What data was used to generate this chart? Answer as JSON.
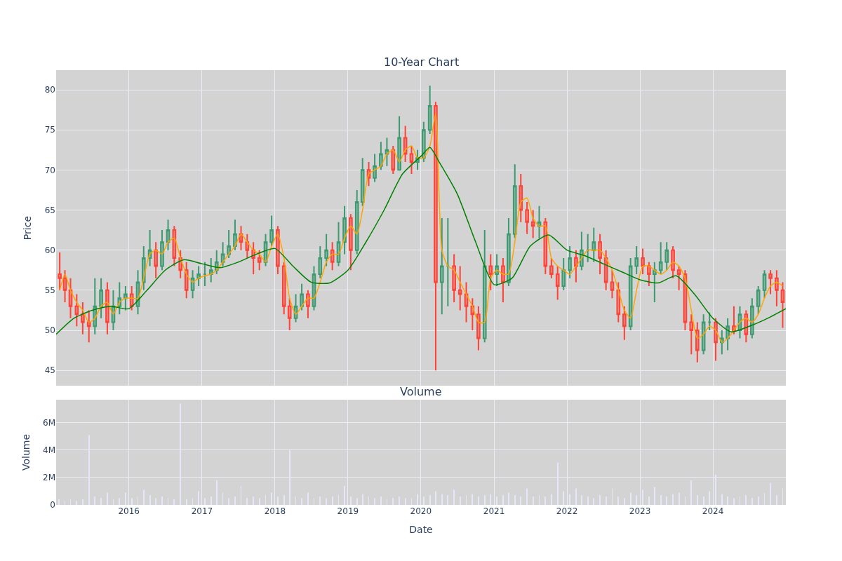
{
  "chart_data": [
    {
      "type": "candlestick",
      "title": "10-Year Chart",
      "ylabel": "Price",
      "grid": true,
      "tick_labels": "y",
      "xlim": [
        "2015-01-02",
        "2024-12-31"
      ],
      "xticks": [
        "2016",
        "2017",
        "2018",
        "2019",
        "2020",
        "2021",
        "2022",
        "2023",
        "2024"
      ],
      "ylim": [
        43.08,
        82.45
      ],
      "yticks": [
        45,
        50,
        55,
        60,
        65,
        70,
        75,
        80
      ],
      "x": [
        "2015-01-20",
        "2015-02-15",
        "2015-03-15",
        "2015-04-15",
        "2015-05-15",
        "2015-06-15",
        "2015-07-15",
        "2015-08-15",
        "2015-09-15",
        "2015-10-15",
        "2015-11-15",
        "2015-12-15",
        "2016-01-15",
        "2016-02-15",
        "2016-03-15",
        "2016-04-15",
        "2016-05-15",
        "2016-06-15",
        "2016-07-15",
        "2016-08-15",
        "2016-09-15",
        "2016-10-15",
        "2016-11-15",
        "2016-12-15",
        "2017-01-15",
        "2017-02-15",
        "2017-03-15",
        "2017-04-15",
        "2017-05-15",
        "2017-06-15",
        "2017-07-15",
        "2017-08-15",
        "2017-09-15",
        "2017-10-15",
        "2017-11-15",
        "2017-12-15",
        "2018-01-15",
        "2018-02-15",
        "2018-03-15",
        "2018-04-15",
        "2018-05-15",
        "2018-06-15",
        "2018-07-15",
        "2018-08-15",
        "2018-09-15",
        "2018-10-15",
        "2018-11-15",
        "2018-12-15",
        "2019-01-15",
        "2019-02-15",
        "2019-03-15",
        "2019-04-15",
        "2019-05-15",
        "2019-06-15",
        "2019-07-15",
        "2019-08-15",
        "2019-09-15",
        "2019-10-15",
        "2019-11-15",
        "2019-12-15",
        "2020-01-15",
        "2020-02-15",
        "2020-03-15",
        "2020-04-15",
        "2020-05-15",
        "2020-06-15",
        "2020-07-15",
        "2020-08-15",
        "2020-09-15",
        "2020-10-15",
        "2020-11-15",
        "2020-12-15",
        "2021-01-15",
        "2021-02-15",
        "2021-03-15",
        "2021-04-15",
        "2021-05-15",
        "2021-06-15",
        "2021-07-15",
        "2021-08-15",
        "2021-09-15",
        "2021-10-15",
        "2021-11-15",
        "2021-12-15",
        "2022-01-15",
        "2022-02-15",
        "2022-03-15",
        "2022-04-15",
        "2022-05-15",
        "2022-06-15",
        "2022-07-15",
        "2022-08-15",
        "2022-09-15",
        "2022-10-15",
        "2022-11-15",
        "2022-12-15",
        "2023-01-15",
        "2023-02-15",
        "2023-03-15",
        "2023-04-15",
        "2023-05-15",
        "2023-06-15",
        "2023-07-15",
        "2023-08-15",
        "2023-09-15",
        "2023-10-15",
        "2023-11-15",
        "2023-12-15",
        "2024-01-15",
        "2024-02-15",
        "2024-03-15",
        "2024-04-15",
        "2024-05-15",
        "2024-06-15",
        "2024-07-15",
        "2024-08-15",
        "2024-09-15",
        "2024-10-15",
        "2024-11-15",
        "2024-12-15"
      ],
      "ohlc": [
        [
          57,
          59.7,
          55,
          56.5
        ],
        [
          56.5,
          57.5,
          53.5,
          55
        ],
        [
          55,
          56.5,
          51.5,
          53
        ],
        [
          53,
          54.5,
          50.5,
          52
        ],
        [
          52,
          53.5,
          49.5,
          51
        ],
        [
          51,
          52.5,
          48.5,
          50.5
        ],
        [
          50.5,
          56.5,
          49.5,
          53
        ],
        [
          53,
          56.5,
          51.5,
          55
        ],
        [
          55,
          56,
          49.5,
          51
        ],
        [
          51,
          55,
          50,
          53
        ],
        [
          53,
          56,
          52,
          54
        ],
        [
          54,
          55.5,
          52.5,
          54.5
        ],
        [
          54.5,
          55.5,
          52.5,
          53
        ],
        [
          53,
          57.5,
          52,
          56
        ],
        [
          56,
          60.5,
          55,
          59
        ],
        [
          59,
          62.5,
          58,
          60
        ],
        [
          60,
          61,
          56.5,
          58
        ],
        [
          58,
          62.5,
          57.5,
          61
        ],
        [
          61,
          63.8,
          60,
          62.5
        ],
        [
          62.5,
          63,
          58,
          59
        ],
        [
          59,
          60,
          56.5,
          57.5
        ],
        [
          57.5,
          58.5,
          54,
          55
        ],
        [
          55,
          57.5,
          54,
          56.5
        ],
        [
          56.5,
          58,
          55.5,
          57
        ],
        [
          57,
          58.5,
          55.5,
          57
        ],
        [
          57,
          59,
          56,
          57.5
        ],
        [
          57.5,
          60,
          57,
          58.5
        ],
        [
          58.5,
          61,
          58,
          59.5
        ],
        [
          59.5,
          62.5,
          59,
          60.5
        ],
        [
          60.5,
          63.8,
          60,
          62
        ],
        [
          62,
          63,
          60,
          61
        ],
        [
          61,
          62,
          59,
          60
        ],
        [
          60,
          61,
          57,
          59
        ],
        [
          59,
          60,
          57.5,
          58.5
        ],
        [
          58.5,
          62,
          58,
          61
        ],
        [
          61,
          64.3,
          60.5,
          62.5
        ],
        [
          62.5,
          63,
          57,
          58
        ],
        [
          58,
          58.5,
          52,
          53
        ],
        [
          53,
          54,
          50,
          51.5
        ],
        [
          51.5,
          54.5,
          51,
          53
        ],
        [
          53,
          55.8,
          52.5,
          54.5
        ],
        [
          54.5,
          55,
          51.5,
          53
        ],
        [
          53,
          58,
          52.5,
          57
        ],
        [
          57,
          60.5,
          56.5,
          59
        ],
        [
          59,
          62,
          58,
          60
        ],
        [
          60,
          61,
          57.5,
          58.5
        ],
        [
          58.5,
          63.5,
          58,
          61
        ],
        [
          61,
          65.5,
          59.5,
          64
        ],
        [
          64,
          64.5,
          57.5,
          60
        ],
        [
          60,
          67.5,
          59.5,
          66
        ],
        [
          66,
          71.5,
          65.5,
          70
        ],
        [
          70,
          71,
          68,
          69
        ],
        [
          69,
          72,
          68.5,
          70.5
        ],
        [
          70.5,
          73.5,
          70,
          72
        ],
        [
          72,
          74,
          70.5,
          72.5
        ],
        [
          72.5,
          73,
          69.5,
          70
        ],
        [
          70,
          76.7,
          70,
          74
        ],
        [
          74,
          75.5,
          71,
          72
        ],
        [
          72,
          73,
          69.5,
          71
        ],
        [
          71,
          72.5,
          70,
          71.5
        ],
        [
          71.5,
          76,
          71,
          75
        ],
        [
          75,
          80.5,
          74.5,
          78
        ],
        [
          78,
          78.5,
          45,
          56
        ],
        [
          56,
          64,
          52,
          58
        ],
        [
          58,
          64,
          53,
          58
        ],
        [
          58,
          59.5,
          53.5,
          55
        ],
        [
          55,
          58,
          52.5,
          54.5
        ],
        [
          54.5,
          56,
          51,
          53
        ],
        [
          53,
          54,
          50,
          52
        ],
        [
          52,
          53,
          47.5,
          49
        ],
        [
          49,
          62.5,
          48.5,
          58
        ],
        [
          58,
          59.5,
          55,
          57
        ],
        [
          57,
          59.5,
          55.5,
          58
        ],
        [
          58,
          59,
          53.5,
          56
        ],
        [
          56,
          64,
          55.5,
          62
        ],
        [
          62,
          70.7,
          61.5,
          68
        ],
        [
          68,
          69.5,
          63.5,
          65
        ],
        [
          65,
          66,
          62,
          63.5
        ],
        [
          63.5,
          65,
          61.5,
          63
        ],
        [
          63,
          65.5,
          61.5,
          63.5
        ],
        [
          63.5,
          64,
          57,
          58
        ],
        [
          58,
          59,
          56.5,
          57
        ],
        [
          57,
          58,
          53.8,
          55.5
        ],
        [
          55.5,
          59,
          55,
          57.5
        ],
        [
          57.5,
          60.5,
          56.5,
          59
        ],
        [
          59,
          60,
          56,
          58
        ],
        [
          58,
          62.3,
          57.5,
          60
        ],
        [
          60,
          62,
          58.5,
          60
        ],
        [
          60,
          62.8,
          58.5,
          61
        ],
        [
          61,
          62,
          57,
          59
        ],
        [
          59,
          60,
          55,
          56
        ],
        [
          56,
          57.5,
          54,
          55
        ],
        [
          55,
          56,
          51,
          52
        ],
        [
          52,
          53,
          48.8,
          50.5
        ],
        [
          50.5,
          59,
          50,
          58
        ],
        [
          58,
          60.5,
          57,
          59
        ],
        [
          59,
          60.2,
          57,
          58
        ],
        [
          58,
          58.5,
          55.5,
          57
        ],
        [
          57,
          58.5,
          53.5,
          57.5
        ],
        [
          57.5,
          61,
          57,
          58.5
        ],
        [
          58.5,
          61,
          57.5,
          60
        ],
        [
          60,
          60.5,
          56.5,
          57.5
        ],
        [
          57.5,
          58,
          55,
          57
        ],
        [
          57,
          57.5,
          50,
          51
        ],
        [
          51,
          52,
          47,
          50
        ],
        [
          50,
          51,
          46,
          47.5
        ],
        [
          47.5,
          52,
          47,
          51
        ],
        [
          51,
          52.2,
          50,
          51
        ],
        [
          51,
          51.5,
          46.2,
          48.5
        ],
        [
          48.5,
          50,
          47,
          49
        ],
        [
          49,
          51.5,
          47.5,
          50.5
        ],
        [
          50.5,
          53,
          49.5,
          50
        ],
        [
          50,
          53,
          49,
          52
        ],
        [
          52,
          52.5,
          48.5,
          49.5
        ],
        [
          49.5,
          54,
          49,
          53
        ],
        [
          53,
          55.5,
          52,
          55
        ],
        [
          55,
          57.5,
          54,
          57
        ],
        [
          57,
          57.5,
          54.5,
          56.5
        ],
        [
          56.5,
          57.5,
          53,
          55
        ],
        [
          55,
          56,
          50.3,
          53.5
        ]
      ],
      "series": [
        {
          "type": "line",
          "color": "#ffa500",
          "values": [
            55,
            57,
            55,
            53.5,
            52.5,
            51,
            51.5,
            53,
            53.5,
            52,
            53.5,
            54,
            54,
            54,
            56.5,
            59.5,
            60,
            59.5,
            61,
            61.5,
            59,
            57,
            56,
            56.5,
            56.8,
            57,
            57.5,
            58.5,
            59.5,
            60.5,
            62,
            61,
            60,
            59.5,
            58.5,
            60.5,
            62,
            59,
            54,
            52,
            53,
            54,
            54,
            56,
            58.5,
            59.5,
            59.5,
            61.5,
            63,
            62,
            65,
            69.5,
            70,
            70.5,
            72,
            72.5,
            71,
            72.5,
            73,
            71.5,
            71.5,
            73,
            77,
            60,
            58,
            57.5,
            56,
            54.5,
            53,
            51,
            51,
            56.5,
            57.5,
            57,
            57,
            61,
            66,
            66.5,
            64,
            63,
            63,
            59,
            58,
            57.5,
            57,
            58,
            59,
            60,
            60,
            60,
            59,
            57.5,
            55,
            52.5,
            51.5,
            55,
            58,
            58,
            57.5,
            57,
            57.5,
            58.5,
            58,
            56.5,
            52.5,
            49,
            49.5,
            50.5,
            50,
            48.5,
            49,
            50,
            51,
            51.5,
            51,
            52,
            54,
            55.5,
            56,
            55.5
          ]
        },
        {
          "type": "line",
          "color": "#008000",
          "x": [
            "2015-01-02",
            "2015-04-01",
            "2015-07-01",
            "2015-10-01",
            "2016-01-01",
            "2016-04-01",
            "2016-07-01",
            "2016-10-01",
            "2017-01-01",
            "2017-04-01",
            "2017-07-01",
            "2017-10-01",
            "2018-01-01",
            "2018-04-01",
            "2018-07-01",
            "2018-10-01",
            "2019-01-01",
            "2019-04-01",
            "2019-07-01",
            "2019-10-01",
            "2020-01-01",
            "2020-02-15",
            "2020-04-01",
            "2020-07-01",
            "2020-10-01",
            "2021-01-01",
            "2021-04-01",
            "2021-07-01",
            "2021-10-01",
            "2022-01-01",
            "2022-04-01",
            "2022-07-01",
            "2022-10-01",
            "2023-01-01",
            "2023-04-01",
            "2023-07-01",
            "2023-10-01",
            "2024-01-01",
            "2024-04-01",
            "2024-07-01",
            "2024-10-01",
            "2024-12-31"
          ],
          "values": [
            49.5,
            51.5,
            52.5,
            53,
            52.7,
            55,
            57.5,
            58.8,
            58.3,
            57.8,
            58.5,
            59.5,
            60.2,
            58,
            56,
            55.9,
            57.5,
            61,
            65,
            69.5,
            71.7,
            72.8,
            71,
            67,
            61,
            55.7,
            56.5,
            60.5,
            61.9,
            60,
            59.3,
            58.3,
            57.3,
            56.3,
            55.9,
            56.8,
            54.5,
            51.5,
            49.8,
            50.5,
            51.5,
            52.7
          ]
        }
      ]
    },
    {
      "type": "bar",
      "title": "Volume",
      "ylabel": "Volume",
      "xlabel": "Date",
      "grid": true,
      "color": "#e6e6fa",
      "xlim": [
        "2015-01-02",
        "2024-12-31"
      ],
      "xticks": [
        "2016",
        "2017",
        "2018",
        "2019",
        "2020",
        "2021",
        "2022",
        "2023",
        "2024"
      ],
      "ylim": [
        0,
        7690000
      ],
      "yticks": [
        0,
        {
          "value": 2000000,
          "label": "2M"
        },
        {
          "value": 4000000,
          "label": "4M"
        },
        {
          "value": 6000000,
          "label": "6M"
        }
      ],
      "x": [
        "2015-01-15",
        "2015-02-15",
        "2015-03-15",
        "2015-04-15",
        "2015-05-15",
        "2015-06-15",
        "2015-07-15",
        "2015-08-15",
        "2015-09-15",
        "2015-10-15",
        "2015-11-15",
        "2015-12-15",
        "2016-01-15",
        "2016-02-15",
        "2016-03-15",
        "2016-04-15",
        "2016-05-15",
        "2016-06-15",
        "2016-07-15",
        "2016-08-15",
        "2016-09-15",
        "2016-10-15",
        "2016-11-15",
        "2016-12-15",
        "2017-01-15",
        "2017-02-15",
        "2017-03-15",
        "2017-04-15",
        "2017-05-15",
        "2017-06-15",
        "2017-07-15",
        "2017-08-15",
        "2017-09-15",
        "2017-10-15",
        "2017-11-15",
        "2017-12-15",
        "2018-01-15",
        "2018-02-15",
        "2018-03-15",
        "2018-04-15",
        "2018-05-15",
        "2018-06-15",
        "2018-07-15",
        "2018-08-15",
        "2018-09-15",
        "2018-10-15",
        "2018-11-15",
        "2018-12-15",
        "2019-01-15",
        "2019-02-15",
        "2019-03-15",
        "2019-04-15",
        "2019-05-15",
        "2019-06-15",
        "2019-07-15",
        "2019-08-15",
        "2019-09-15",
        "2019-10-15",
        "2019-11-15",
        "2019-12-15",
        "2020-01-15",
        "2020-02-15",
        "2020-03-15",
        "2020-04-15",
        "2020-05-15",
        "2020-06-15",
        "2020-07-15",
        "2020-08-15",
        "2020-09-15",
        "2020-10-15",
        "2020-11-15",
        "2020-12-15",
        "2021-01-15",
        "2021-02-15",
        "2021-03-15",
        "2021-04-15",
        "2021-05-15",
        "2021-06-15",
        "2021-07-15",
        "2021-08-15",
        "2021-09-15",
        "2021-10-15",
        "2021-11-15",
        "2021-12-15",
        "2022-01-15",
        "2022-02-15",
        "2022-03-15",
        "2022-04-15",
        "2022-05-15",
        "2022-06-15",
        "2022-07-15",
        "2022-08-15",
        "2022-09-15",
        "2022-10-15",
        "2022-11-15",
        "2022-12-15",
        "2023-01-15",
        "2023-02-15",
        "2023-03-15",
        "2023-04-15",
        "2023-05-15",
        "2023-06-15",
        "2023-07-15",
        "2023-08-15",
        "2023-09-15",
        "2023-10-15",
        "2023-11-15",
        "2023-12-15",
        "2024-01-15",
        "2024-02-15",
        "2024-03-15",
        "2024-04-15",
        "2024-05-15",
        "2024-06-15",
        "2024-07-15",
        "2024-08-15",
        "2024-09-15",
        "2024-10-15",
        "2024-11-15",
        "2024-12-15"
      ],
      "values": [
        400000,
        300000,
        400000,
        300000,
        400000,
        5100000,
        600000,
        500000,
        900000,
        400000,
        500000,
        900000,
        500000,
        600000,
        1100000,
        700000,
        500000,
        600000,
        500000,
        400000,
        7400000,
        400000,
        500000,
        1000000,
        500000,
        600000,
        1800000,
        900000,
        500000,
        600000,
        1400000,
        500000,
        600000,
        500000,
        700000,
        900000,
        600000,
        700000,
        4000000,
        600000,
        500000,
        900000,
        500000,
        600000,
        500000,
        600000,
        700000,
        1400000,
        600000,
        500000,
        800000,
        600000,
        500000,
        600000,
        400000,
        500000,
        600000,
        500000,
        500000,
        800000,
        600000,
        700000,
        1000000,
        800000,
        700000,
        1100000,
        600000,
        700000,
        800000,
        600000,
        700000,
        800000,
        600000,
        700000,
        900000,
        700000,
        600000,
        1200000,
        600000,
        700000,
        600000,
        800000,
        3100000,
        1000000,
        800000,
        1200000,
        700000,
        600000,
        500000,
        700000,
        600000,
        1200000,
        600000,
        500000,
        900000,
        700000,
        1100000,
        600000,
        1300000,
        700000,
        600000,
        800000,
        900000,
        600000,
        1800000,
        700000,
        600000,
        1000000,
        2200000,
        800000,
        600000,
        500000,
        600000,
        700000,
        500000,
        600000,
        900000,
        1600000,
        700000,
        1200000
      ]
    }
  ]
}
